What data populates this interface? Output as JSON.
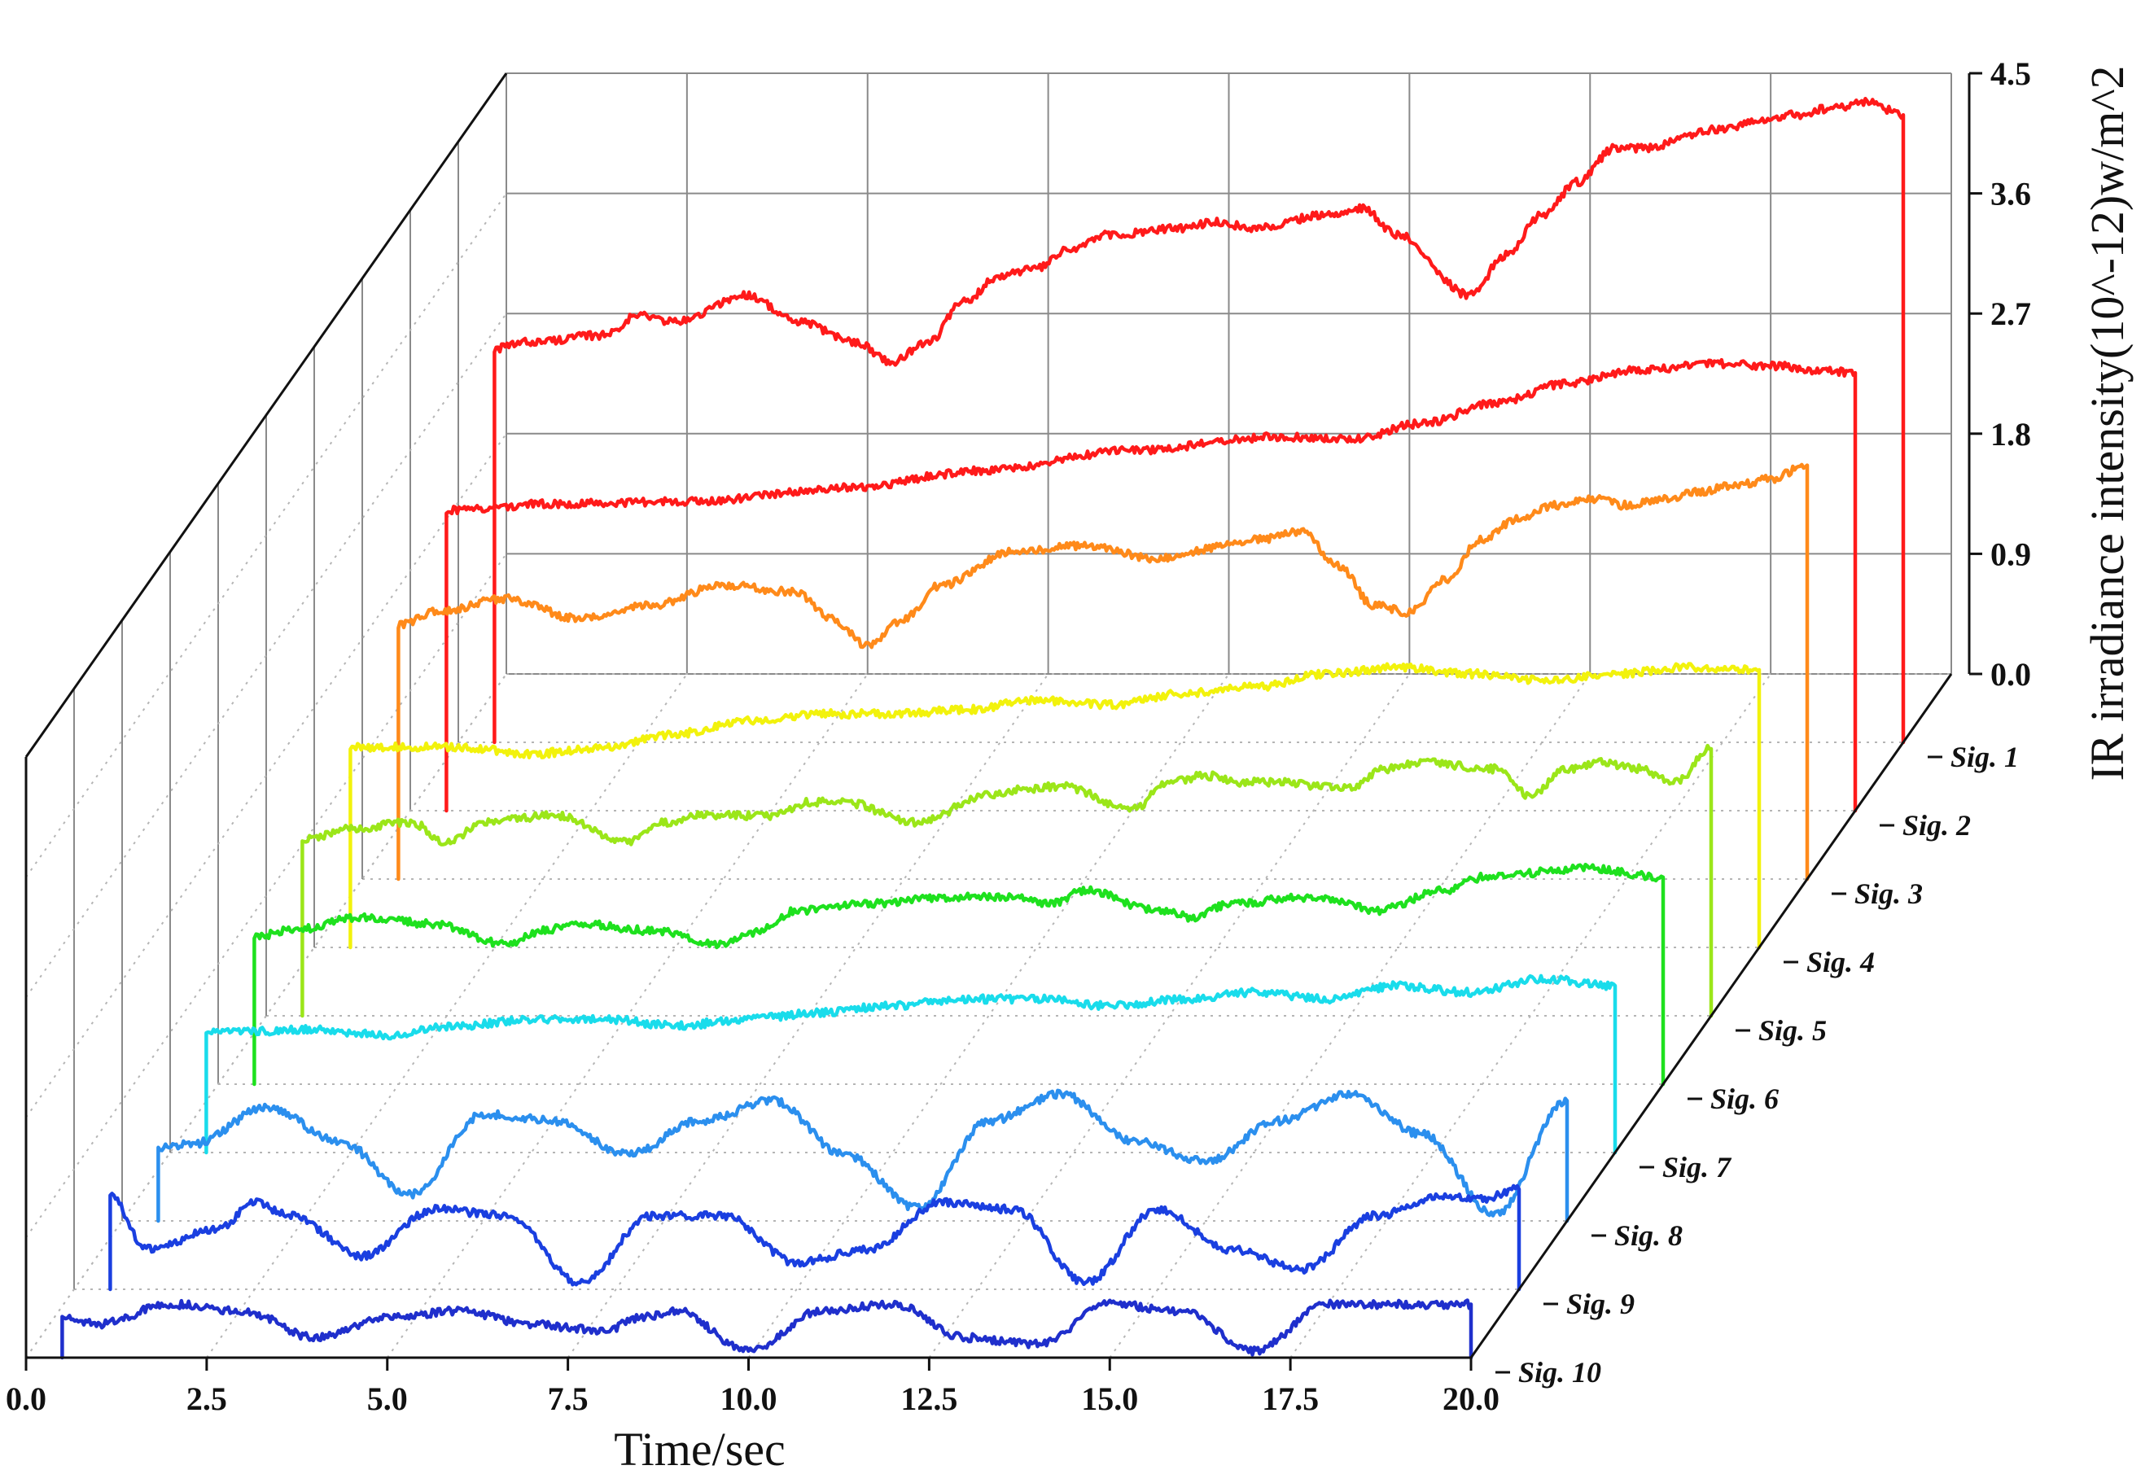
{
  "chart_data": {
    "type": "line",
    "xlabel": "Time/sec",
    "zlabel": "IR irradiance intensity(10^-12)w/m^2",
    "xlim": [
      0,
      20
    ],
    "zlim": [
      0,
      4.5
    ],
    "x_ticks": [
      "0.0",
      "2.5",
      "5.0",
      "7.5",
      "10.0",
      "12.5",
      "15.0",
      "17.5",
      "20.0"
    ],
    "z_ticks": [
      "0.0",
      "0.9",
      "1.8",
      "2.7",
      "3.6",
      "4.5"
    ],
    "grid": true,
    "series": [
      {
        "name": "Sig. 1",
        "color": "#ff1a1a",
        "x": [
          0.5,
          1,
          2,
          2.5,
          3,
          4,
          4.7,
          5.5,
          6,
          6.5,
          7,
          7.5,
          8,
          8.5,
          9,
          10,
          10.5,
          11,
          12,
          12.5,
          13,
          14,
          14.5,
          15,
          15.5,
          16,
          16.5,
          17,
          17.5,
          18,
          18.5,
          19,
          19.5,
          20
        ],
        "y": [
          2.95,
          3.0,
          3.05,
          3.2,
          3.15,
          3.35,
          3.15,
          3.0,
          2.85,
          3.0,
          3.3,
          3.5,
          3.55,
          3.7,
          3.8,
          3.85,
          3.9,
          3.85,
          3.95,
          4.0,
          3.8,
          3.35,
          3.65,
          3.95,
          4.2,
          4.45,
          4.45,
          4.55,
          4.6,
          4.65,
          4.7,
          4.75,
          4.8,
          4.7
        ]
      },
      {
        "name": "Sig. 2",
        "color": "#ff1a1a",
        "x": [
          0.5,
          2,
          4,
          6,
          8,
          10,
          12,
          13,
          14,
          15,
          16,
          17,
          18,
          19,
          19.5,
          20
        ],
        "y": [
          2.25,
          2.3,
          2.32,
          2.42,
          2.55,
          2.7,
          2.8,
          2.78,
          2.9,
          3.05,
          3.2,
          3.3,
          3.35,
          3.33,
          3.3,
          3.28
        ]
      },
      {
        "name": "Sig. 3",
        "color": "#ff8a1a",
        "x": [
          0.5,
          1,
          2,
          3,
          4,
          5,
          6,
          6.5,
          7,
          7.5,
          8,
          9,
          10,
          11,
          12,
          12.5,
          13,
          13.5,
          14,
          14.5,
          15,
          15.5,
          16,
          16.5,
          17,
          17.5,
          18,
          18.5,
          19,
          19.5,
          20
        ],
        "y": [
          1.9,
          2.0,
          2.1,
          1.95,
          2.05,
          2.2,
          2.15,
          1.95,
          1.75,
          1.95,
          2.2,
          2.45,
          2.5,
          2.4,
          2.5,
          2.55,
          2.6,
          2.35,
          2.05,
          2.0,
          2.25,
          2.55,
          2.7,
          2.8,
          2.85,
          2.8,
          2.85,
          2.9,
          2.95,
          3.0,
          3.1
        ]
      },
      {
        "name": "Sig. 4",
        "color": "#f2f20c",
        "x": [
          0.5,
          2,
          3,
          4,
          5,
          6,
          7,
          8,
          9,
          10,
          11,
          12,
          13,
          14,
          15,
          16,
          17,
          18,
          19,
          20
        ],
        "y": [
          1.5,
          1.5,
          1.45,
          1.5,
          1.6,
          1.7,
          1.75,
          1.75,
          1.78,
          1.85,
          1.82,
          1.9,
          1.95,
          2.05,
          2.1,
          2.05,
          2.0,
          2.05,
          2.1,
          2.08
        ]
      },
      {
        "name": "Sig. 5",
        "color": "#9be619",
        "x": [
          0.5,
          1.2,
          2,
          2.5,
          3,
          4,
          5,
          5.5,
          6,
          7,
          7.5,
          8,
          9,
          10,
          10.5,
          11,
          12,
          12.5,
          13,
          13.5,
          14,
          15,
          15.5,
          16,
          17,
          17.5,
          18,
          18.5,
          19,
          19.5,
          20
        ],
        "y": [
          1.32,
          1.4,
          1.45,
          1.3,
          1.45,
          1.5,
          1.3,
          1.45,
          1.5,
          1.5,
          1.6,
          1.6,
          1.45,
          1.65,
          1.7,
          1.72,
          1.55,
          1.75,
          1.8,
          1.75,
          1.75,
          1.7,
          1.85,
          1.9,
          1.85,
          1.65,
          1.85,
          1.9,
          1.85,
          1.75,
          2.0
        ]
      },
      {
        "name": "Sig. 6",
        "color": "#1ee11e",
        "x": [
          0.5,
          1,
          2,
          3,
          4,
          4.5,
          5,
          6,
          7,
          7.5,
          8,
          9,
          10,
          11,
          11.5,
          12,
          13,
          13.5,
          14,
          15,
          15.5,
          16,
          17,
          17.5,
          18,
          19,
          20
        ],
        "y": [
          1.1,
          1.15,
          1.25,
          1.2,
          1.05,
          1.15,
          1.2,
          1.15,
          1.05,
          1.15,
          1.3,
          1.35,
          1.4,
          1.4,
          1.35,
          1.45,
          1.3,
          1.25,
          1.35,
          1.4,
          1.38,
          1.3,
          1.45,
          1.55,
          1.58,
          1.62,
          1.55
        ]
      },
      {
        "name": "Sig. 7",
        "color": "#19dceb",
        "x": [
          0.5,
          2,
          3,
          4,
          5,
          6,
          7,
          8,
          9,
          10,
          11,
          12,
          13,
          14,
          15,
          16,
          17,
          18,
          19,
          20
        ],
        "y": [
          0.9,
          0.92,
          0.88,
          0.95,
          1.0,
          1.0,
          0.95,
          1.0,
          1.05,
          1.1,
          1.15,
          1.15,
          1.1,
          1.15,
          1.2,
          1.15,
          1.25,
          1.2,
          1.3,
          1.25
        ]
      },
      {
        "name": "Sig. 8",
        "color": "#2b8fee",
        "x": [
          0.5,
          1,
          2,
          3,
          4,
          5,
          6,
          7,
          8,
          9,
          10,
          11,
          12,
          13,
          14,
          15,
          16,
          17,
          18,
          19,
          20
        ],
        "y": [
          0.55,
          0.58,
          0.85,
          0.6,
          0.2,
          0.8,
          0.75,
          0.5,
          0.75,
          0.9,
          0.5,
          0.1,
          0.75,
          0.95,
          0.6,
          0.45,
          0.75,
          0.95,
          0.65,
          0.05,
          0.9
        ]
      },
      {
        "name": "Sig. 9",
        "color": "#1a3fe0",
        "x": [
          0.5,
          1,
          2,
          2.5,
          3,
          4,
          5,
          6,
          7,
          8,
          9,
          10,
          11,
          12,
          13,
          14,
          15,
          16,
          17,
          18,
          19,
          19.5,
          20
        ],
        "y": [
          0.7,
          0.3,
          0.45,
          0.65,
          0.55,
          0.25,
          0.6,
          0.55,
          0.05,
          0.55,
          0.55,
          0.2,
          0.3,
          0.65,
          0.6,
          0.05,
          0.6,
          0.3,
          0.15,
          0.55,
          0.7,
          0.68,
          0.75
        ]
      },
      {
        "name": "Sig. 10",
        "color": "#1f2fcc",
        "x": [
          0.5,
          1,
          2,
          3,
          4,
          5,
          6,
          7,
          8,
          8.5,
          9,
          10,
          11,
          12,
          13,
          14,
          15,
          16,
          17,
          18,
          19,
          20
        ],
        "y": [
          0.3,
          0.25,
          0.4,
          0.35,
          0.15,
          0.3,
          0.35,
          0.25,
          0.2,
          0.3,
          0.35,
          0.05,
          0.35,
          0.4,
          0.15,
          0.1,
          0.4,
          0.35,
          0.05,
          0.4,
          0.4,
          0.4
        ]
      }
    ]
  }
}
